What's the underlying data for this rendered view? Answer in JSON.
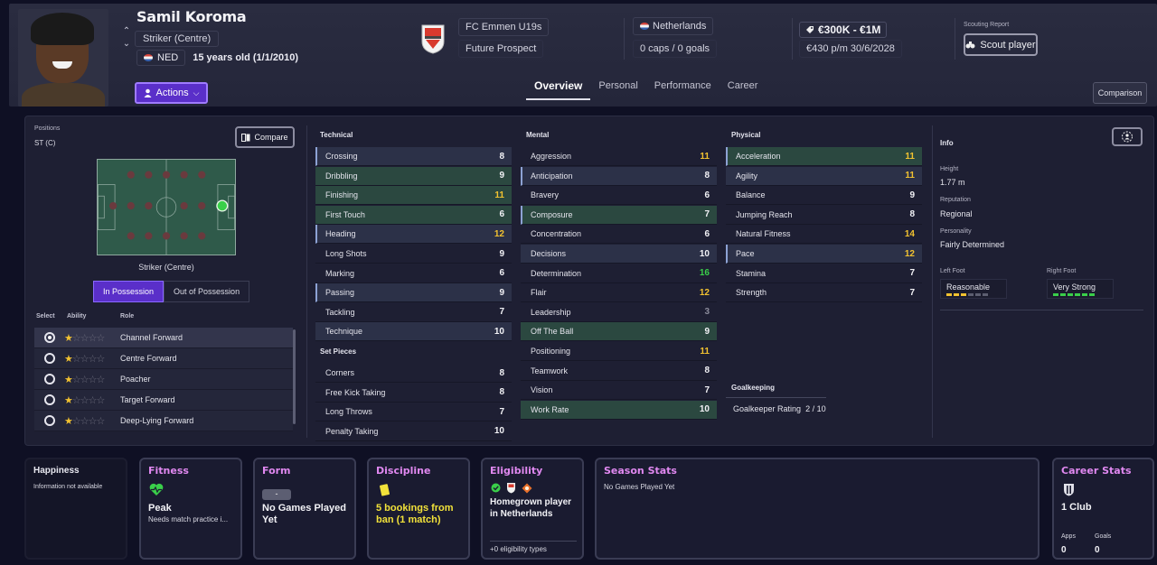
{
  "header": {
    "player_name": "Samil Koroma",
    "position": "Striker (Centre)",
    "nationality_code": "NED",
    "age_text": "15 years old (1/1/2010)",
    "actions_label": "Actions",
    "club_name": "FC Emmen U19s",
    "club_status": "Future Prospect",
    "nation_name": "Netherlands",
    "caps_goals": "0 caps / 0 goals",
    "value_range": "€300K - €1M",
    "contract": "€430 p/m 30/6/2028",
    "scouting_label": "Scouting Report",
    "scout_button": "Scout player",
    "comparison_button": "Comparison",
    "tabs": [
      "Overview",
      "Personal",
      "Performance",
      "Career"
    ]
  },
  "positions": {
    "label": "Positions",
    "value": "ST (C)",
    "compare_button": "Compare",
    "pitch_caption": "Striker (Centre)",
    "possession_on": "In Possession",
    "possession_off": "Out of Possession",
    "col_select": "Select",
    "col_ability": "Ability",
    "col_role": "Role",
    "roles": [
      {
        "name": "Channel Forward",
        "stars": 1,
        "selected": true
      },
      {
        "name": "Centre Forward",
        "stars": 1,
        "selected": false
      },
      {
        "name": "Poacher",
        "stars": 1,
        "selected": false
      },
      {
        "name": "Target Forward",
        "stars": 1,
        "selected": false
      },
      {
        "name": "Deep-Lying Forward",
        "stars": 1,
        "selected": false
      }
    ]
  },
  "technical": {
    "title": "Technical",
    "attrs": [
      {
        "name": "Crossing",
        "value": "8"
      },
      {
        "name": "Dribbling",
        "value": "9"
      },
      {
        "name": "Finishing",
        "value": "11"
      },
      {
        "name": "First Touch",
        "value": "6"
      },
      {
        "name": "Heading",
        "value": "12"
      },
      {
        "name": "Long Shots",
        "value": "9"
      },
      {
        "name": "Marking",
        "value": "6"
      },
      {
        "name": "Passing",
        "value": "9"
      },
      {
        "name": "Tackling",
        "value": "7"
      },
      {
        "name": "Technique",
        "value": "10"
      }
    ]
  },
  "set_pieces": {
    "title": "Set Pieces",
    "attrs": [
      {
        "name": "Corners",
        "value": "8"
      },
      {
        "name": "Free Kick Taking",
        "value": "8"
      },
      {
        "name": "Long Throws",
        "value": "7"
      },
      {
        "name": "Penalty Taking",
        "value": "10"
      }
    ]
  },
  "mental": {
    "title": "Mental",
    "attrs": [
      {
        "name": "Aggression",
        "value": "11"
      },
      {
        "name": "Anticipation",
        "value": "8"
      },
      {
        "name": "Bravery",
        "value": "6"
      },
      {
        "name": "Composure",
        "value": "7"
      },
      {
        "name": "Concentration",
        "value": "6"
      },
      {
        "name": "Decisions",
        "value": "10"
      },
      {
        "name": "Determination",
        "value": "16"
      },
      {
        "name": "Flair",
        "value": "12"
      },
      {
        "name": "Leadership",
        "value": "3"
      },
      {
        "name": "Off The Ball",
        "value": "9"
      },
      {
        "name": "Positioning",
        "value": "11"
      },
      {
        "name": "Teamwork",
        "value": "8"
      },
      {
        "name": "Vision",
        "value": "7"
      },
      {
        "name": "Work Rate",
        "value": "10"
      }
    ]
  },
  "physical": {
    "title": "Physical",
    "attrs": [
      {
        "name": "Acceleration",
        "value": "11"
      },
      {
        "name": "Agility",
        "value": "11"
      },
      {
        "name": "Balance",
        "value": "9"
      },
      {
        "name": "Jumping Reach",
        "value": "8"
      },
      {
        "name": "Natural Fitness",
        "value": "14"
      },
      {
        "name": "Pace",
        "value": "12"
      },
      {
        "name": "Stamina",
        "value": "7"
      },
      {
        "name": "Strength",
        "value": "7"
      }
    ]
  },
  "goalkeeping": {
    "title": "Goalkeeping",
    "rating_label": "Goalkeeper Rating",
    "rating_value": "2 / 10"
  },
  "info": {
    "title": "Info",
    "height_label": "Height",
    "height_value": "1.77 m",
    "reputation_label": "Reputation",
    "reputation_value": "Regional",
    "personality_label": "Personality",
    "personality_value": "Fairly Determined",
    "left_foot_label": "Left Foot",
    "left_foot_value": "Reasonable",
    "left_foot_level": 3,
    "right_foot_label": "Right Foot",
    "right_foot_value": "Very Strong",
    "right_foot_level": 6
  },
  "cards": {
    "happiness": {
      "title": "Happiness",
      "text": "Information not available"
    },
    "fitness": {
      "title": "Fitness",
      "status": "Peak",
      "note": "Needs match practice i..."
    },
    "form": {
      "title": "Form",
      "chip": "-",
      "text": "No Games Played Yet"
    },
    "discipline": {
      "title": "Discipline",
      "text": "5 bookings from ban (1 match)"
    },
    "eligibility": {
      "title": "Eligibility",
      "text": "Homegrown player in Netherlands",
      "footer": "+0 eligibility types"
    },
    "season": {
      "title": "Season Stats",
      "text": "No Games Played Yet"
    },
    "career": {
      "title": "Career Stats",
      "clubs": "1 Club",
      "apps_label": "Apps",
      "apps_value": "0",
      "goals_label": "Goals",
      "goals_value": "0"
    }
  },
  "colors": {
    "accent_purple": "#5a2fc9",
    "value_yellow": "#f2c230",
    "value_green": "#3acf4a",
    "value_grey": "#8a8a9a",
    "card_title_pink": "#e088f0"
  }
}
